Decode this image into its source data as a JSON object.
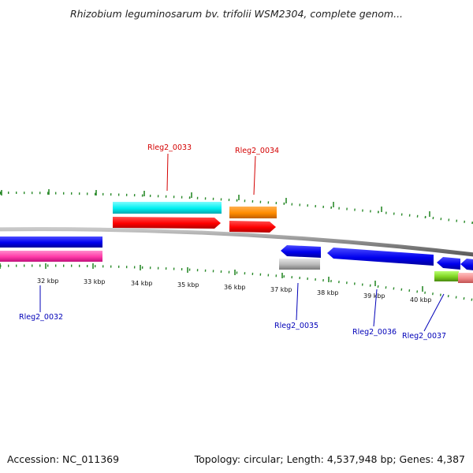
{
  "title": "Rhizobium leguminosarum bv. trifolii WSM2304, complete genom...",
  "footer": {
    "accession": "Accession: NC_011369",
    "summary": "Topology: circular; Length: 4,537,948 bp; Genes: 4,387"
  },
  "scale_labels": [
    "32 kbp",
    "33 kbp",
    "34 kbp",
    "35 kbp",
    "36 kbp",
    "37 kbp",
    "38 kbp",
    "39 kbp",
    "40 kbp"
  ],
  "gene_labels": {
    "forward": [
      "Rleg2_0033",
      "Rleg2_0034"
    ],
    "reverse": [
      "Rleg2_0032",
      "Rleg2_0035",
      "Rleg2_0036",
      "Rleg2_0037"
    ]
  },
  "colors": {
    "forward_label": "#d40000",
    "reverse_label": "#0000b8",
    "tick": "#2a8a2a",
    "backbone": "#8a8a8a",
    "cds": "#ff0000",
    "gene_blue": "#0000ee",
    "cyan": "#00f0f0",
    "orange": "#ff8c00",
    "magenta": "#ff3aa8",
    "gray": "#b8b8b8",
    "green": "#7ed321",
    "pink": "#f08a8a"
  }
}
